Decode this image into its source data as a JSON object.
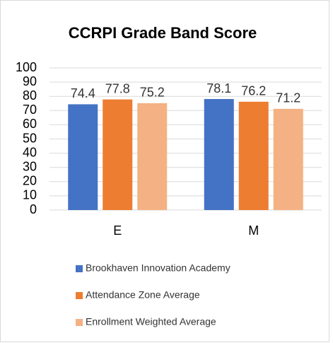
{
  "chart_data": {
    "type": "bar",
    "title": "CCRPI Grade Band Score",
    "categories": [
      "E",
      "M"
    ],
    "series": [
      {
        "name": "Brookhaven Innovation Academy",
        "color": "#4472c4",
        "values": [
          74.4,
          78.1
        ]
      },
      {
        "name": "Attendance Zone Average",
        "color": "#ed7d31",
        "values": [
          77.8,
          76.2
        ]
      },
      {
        "name": "Enrollment Weighted Average",
        "color": "#f4b183",
        "values": [
          75.2,
          71.2
        ]
      }
    ],
    "ylim": [
      0,
      100
    ],
    "yticks": [
      0,
      10,
      20,
      30,
      40,
      50,
      60,
      70,
      80,
      90,
      100
    ],
    "grid": true,
    "legend": "bottom"
  }
}
